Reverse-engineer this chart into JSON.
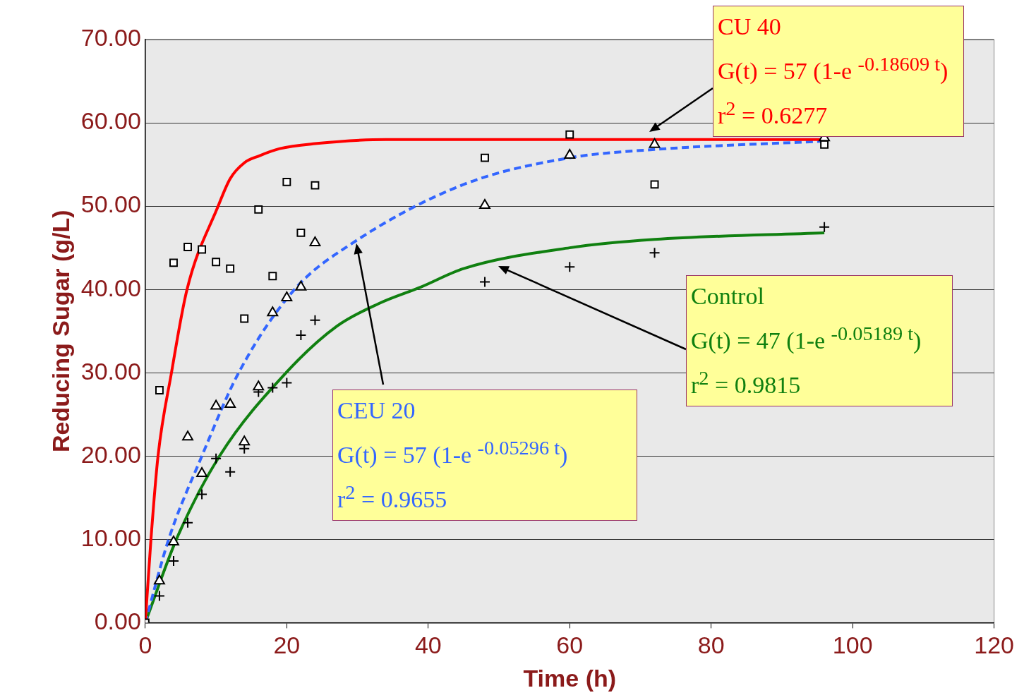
{
  "chart_data": {
    "type": "scatter",
    "xlabel": "Time (h)",
    "ylabel": "Reducing Sugar (g/L)",
    "xlim": [
      0,
      120
    ],
    "xticks": [
      0,
      20,
      40,
      60,
      80,
      100,
      120
    ],
    "ylim": [
      0,
      70
    ],
    "yticks": [
      {
        "value": 0,
        "label": "0.00"
      },
      {
        "value": 10,
        "label": "10.00"
      },
      {
        "value": 20,
        "label": "20.00"
      },
      {
        "value": 30,
        "label": "30.00"
      },
      {
        "value": 40,
        "label": "40.00"
      },
      {
        "value": 50,
        "label": "50.00"
      },
      {
        "value": 60,
        "label": "60.00"
      },
      {
        "value": 70,
        "label": "70.00"
      }
    ],
    "grid": "y",
    "legend": false,
    "series": [
      {
        "marker": "square",
        "color": "#000000",
        "x": [
          0,
          2,
          4,
          6,
          8,
          10,
          12,
          14,
          16,
          18,
          20,
          22,
          24,
          48,
          60,
          72,
          96
        ],
        "values": [
          0,
          27.9,
          43.2,
          45.1,
          44.8,
          43.3,
          42.5,
          36.5,
          49.6,
          41.6,
          52.9,
          46.8,
          52.5,
          55.8,
          58.6,
          52.6,
          57.4
        ]
      },
      {
        "marker": "triangle",
        "color": "#000000",
        "x": [
          2,
          4,
          6,
          8,
          10,
          12,
          14,
          16,
          18,
          20,
          22,
          24,
          48,
          60,
          72,
          96
        ],
        "values": [
          5.0,
          9.7,
          22.3,
          17.9,
          26.0,
          26.2,
          21.7,
          28.3,
          37.2,
          39.0,
          40.3,
          45.6,
          50.1,
          56.1,
          57.4,
          58.2
        ]
      },
      {
        "marker": "cross",
        "color": "#000000",
        "x": [
          2,
          4,
          6,
          8,
          10,
          12,
          14,
          16,
          18,
          20,
          22,
          24,
          48,
          60,
          72,
          96
        ],
        "values": [
          3.2,
          7.4,
          12.0,
          15.4,
          19.7,
          18.1,
          20.9,
          27.7,
          28.2,
          28.8,
          34.5,
          36.3,
          40.9,
          42.7,
          44.4,
          47.5
        ]
      },
      {
        "type": "line",
        "marker": "none",
        "line_style": "solid",
        "color": "#ff0000",
        "x": [
          0,
          0.8,
          1.8,
          3.7,
          5.9,
          10.3,
          12,
          14,
          16,
          19,
          24,
          34,
          50,
          70,
          96
        ],
        "values": [
          0,
          10,
          20,
          30,
          40,
          50,
          53.3,
          55.2,
          56.0,
          56.9,
          57.5,
          58.0,
          58.0,
          58.0,
          58.0
        ]
      },
      {
        "type": "line",
        "marker": "none",
        "line_style": "dashed",
        "color": "#3366ff",
        "x": [
          0,
          3.3,
          8,
          13.2,
          21.1,
          29,
          45,
          60,
          72,
          96
        ],
        "values": [
          0,
          10,
          20,
          30,
          40,
          45.4,
          52.6,
          55.8,
          56.8,
          57.8
        ]
      },
      {
        "type": "line",
        "marker": "none",
        "line_style": "solid",
        "color": "#108010",
        "x": [
          0,
          4.4,
          10.5,
          19.9,
          27.1,
          33,
          39,
          45,
          60,
          72,
          96
        ],
        "values": [
          0,
          10,
          20,
          30,
          35.6,
          38.3,
          40.3,
          42.5,
          45.0,
          46.0,
          46.8
        ]
      }
    ],
    "annotations": [
      "CU 40",
      "G(t) = 57 (1-e $^{-0.18609 t}$)",
      "r$^{2}$ = 0.6277",
      "CEU 20",
      "G(t) = 57 (1-e $^{-0.05296 t}$)",
      "r$^{2}$ = 0.9655",
      "Control",
      "G(t) = 47 (1-e $^{-0.05189 t}$)",
      "r$^{2}$ = 0.9815"
    ]
  }
}
